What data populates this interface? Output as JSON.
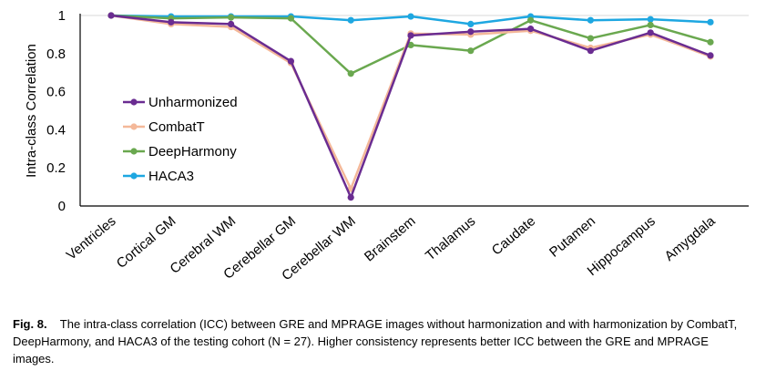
{
  "chart_data": {
    "type": "line",
    "title": "",
    "xlabel": "",
    "ylabel": "Intra-class Correlation",
    "ylim": [
      0,
      1
    ],
    "yticks": [
      "0",
      "0.2",
      "0.4",
      "0.6",
      "0.8",
      "1"
    ],
    "grid": false,
    "legend_position": "left-middle",
    "categories": [
      "Ventricles",
      "Cortical GM",
      "Cerebral WM",
      "Cerebellar GM",
      "Cerebellar WM",
      "Brainstem",
      "Thalamus",
      "Caudate",
      "Putamen",
      "Hippocampus",
      "Amygdala"
    ],
    "series": [
      {
        "name": "Unharmonized",
        "color": "#6a2c91",
        "values": [
          1.0,
          0.965,
          0.955,
          0.76,
          0.045,
          0.895,
          0.915,
          0.93,
          0.815,
          0.91,
          0.79
        ]
      },
      {
        "name": "CombatT",
        "color": "#f4b899",
        "values": [
          1.0,
          0.955,
          0.94,
          0.75,
          0.09,
          0.905,
          0.9,
          0.92,
          0.83,
          0.9,
          0.785
        ]
      },
      {
        "name": "DeepHarmony",
        "color": "#6aa84f",
        "values": [
          1.0,
          0.985,
          0.99,
          0.985,
          0.695,
          0.845,
          0.815,
          0.975,
          0.88,
          0.95,
          0.86
        ]
      },
      {
        "name": "HACA3",
        "color": "#1ea7e1",
        "values": [
          1.0,
          0.995,
          0.995,
          0.995,
          0.975,
          0.995,
          0.955,
          0.995,
          0.975,
          0.98,
          0.965
        ]
      }
    ]
  },
  "caption": {
    "label": "Fig. 8.",
    "text": "The intra-class correlation (ICC) between GRE and MPRAGE images without harmonization and with harmonization by CombatT, DeepHarmony, and HACA3 of the testing cohort (N = 27). Higher consistency represents better ICC between the GRE and MPRAGE images."
  }
}
